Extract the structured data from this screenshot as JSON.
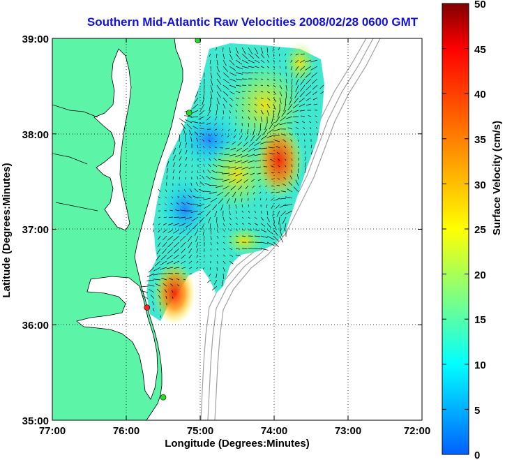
{
  "title": "Southern Mid-Atlantic Raw Velocities 2008/02/28 0600 GMT",
  "x_axis": {
    "label": "Longitude (Degrees:Minutes)",
    "ticks": [
      "77:00",
      "76:00",
      "75:00",
      "74:00",
      "73:00",
      "72:00"
    ],
    "range": [
      -77,
      -72
    ]
  },
  "y_axis": {
    "label": "Latitude (Degrees:Minutes)",
    "ticks": [
      "39:00",
      "38:00",
      "37:00",
      "36:00",
      "35:00"
    ],
    "range": [
      35,
      39
    ]
  },
  "colorbar": {
    "label": "Surface Velocity (cm/s)",
    "ticks": [
      "0",
      "5",
      "10",
      "15",
      "20",
      "25",
      "30",
      "35",
      "40",
      "45",
      "50"
    ],
    "range": [
      0,
      50
    ],
    "colors": [
      "#0000ff",
      "#00ffff",
      "#ffff00",
      "#ff0000",
      "#800000"
    ]
  },
  "colors": {
    "land": "#5cf5a8",
    "water": "#ffffff",
    "coast": "#000000",
    "bathymetry": "#a0a0a0",
    "grid": "#000000",
    "title": "#1010e0",
    "station_active": "#22dd22",
    "station_inactive": "#ff2020"
  },
  "stations": [
    {
      "lon": -75.03,
      "lat": 38.98,
      "status": "active"
    },
    {
      "lon": -75.15,
      "lat": 38.22,
      "status": "active"
    },
    {
      "lon": -75.72,
      "lat": 36.18,
      "status": "inactive"
    },
    {
      "lon": -75.5,
      "lat": 35.24,
      "status": "active"
    }
  ]
}
